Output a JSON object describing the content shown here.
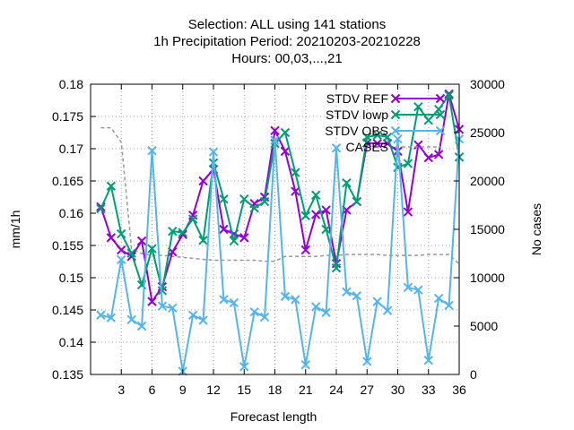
{
  "chart_data": {
    "type": "line",
    "title_lines": [
      "Selection: ALL using   141 stations",
      "1h Precipitation   Period: 20210203-20210228",
      "Hours:  00,03,...,21"
    ],
    "xlabel": "Forecast length",
    "ylabel": "mm/1h",
    "y2label": "No cases",
    "xlim": [
      0,
      36
    ],
    "ylim": [
      0.135,
      0.18
    ],
    "y2lim": [
      0,
      30000
    ],
    "xticks": [
      3,
      6,
      9,
      12,
      15,
      18,
      21,
      24,
      27,
      30,
      33,
      36
    ],
    "yticks": [
      0.135,
      0.14,
      0.145,
      0.15,
      0.155,
      0.16,
      0.165,
      0.17,
      0.175,
      0.18
    ],
    "y2ticks": [
      0,
      5000,
      10000,
      15000,
      20000,
      25000,
      30000
    ],
    "x": [
      1,
      2,
      3,
      4,
      5,
      6,
      7,
      8,
      9,
      10,
      11,
      12,
      13,
      14,
      15,
      16,
      17,
      18,
      19,
      20,
      21,
      22,
      23,
      24,
      25,
      26,
      27,
      28,
      29,
      30,
      31,
      32,
      33,
      34,
      35,
      36
    ],
    "legend_position": "top-right",
    "series": [
      {
        "name": "STDV REF",
        "color": "#9400d3",
        "marker": "x",
        "axis": "y",
        "values": [
          0.161,
          0.1562,
          0.1543,
          0.1533,
          0.1557,
          0.1463,
          0.1486,
          0.154,
          0.1567,
          0.1597,
          0.165,
          0.1668,
          0.1575,
          0.1568,
          0.1562,
          0.1615,
          0.1625,
          0.1728,
          0.1696,
          0.1634,
          0.1543,
          0.1598,
          0.1605,
          0.1522,
          0.1605,
          0.1618,
          0.1709,
          0.1708,
          0.1708,
          0.1696,
          0.1602,
          0.1706,
          0.1686,
          0.1691,
          0.1785,
          0.173
        ]
      },
      {
        "name": "STDV lowp",
        "color": "#009e73",
        "marker": "x",
        "axis": "y",
        "values": [
          0.1607,
          0.1642,
          0.1568,
          0.1538,
          0.1489,
          0.1545,
          0.148,
          0.1572,
          0.157,
          0.1591,
          0.1558,
          0.1678,
          0.1622,
          0.1557,
          0.1622,
          0.1608,
          0.1618,
          0.1708,
          0.1725,
          0.1663,
          0.1596,
          0.1628,
          0.1575,
          0.1515,
          0.1647,
          0.1618,
          0.1718,
          0.1721,
          0.1718,
          0.1671,
          0.1677,
          0.1765,
          0.1744,
          0.1761,
          0.1783,
          0.1687
        ]
      },
      {
        "name": "STDV OBS",
        "color": "#56b4e9",
        "marker": "x",
        "axis": "y",
        "values": [
          0.1442,
          0.1438,
          0.1528,
          0.1435,
          0.1425,
          0.1697,
          0.1456,
          0.1453,
          0.1355,
          0.1442,
          0.1434,
          0.1695,
          0.1466,
          0.1461,
          0.1362,
          0.1447,
          0.1439,
          0.1713,
          0.1471,
          0.1466,
          0.1365,
          0.1455,
          0.1446,
          0.1701,
          0.1478,
          0.1472,
          0.137,
          0.1463,
          0.1449,
          0.1715,
          0.1485,
          0.1481,
          0.1372,
          0.1468,
          0.1457,
          0.1715
        ]
      },
      {
        "name": "CASES",
        "color": "#999999",
        "dash": true,
        "axis": "y2",
        "values": [
          25500,
          25500,
          24000,
          13000,
          12500,
          12300,
          12300,
          12200,
          12100,
          12000,
          11900,
          11800,
          11800,
          11800,
          11800,
          11800,
          11700,
          11700,
          12200,
          12200,
          12200,
          12200,
          12300,
          12300,
          12400,
          12400,
          12400,
          12400,
          12300,
          12300,
          12300,
          12300,
          12400,
          12400,
          12400,
          11400
        ]
      }
    ]
  }
}
